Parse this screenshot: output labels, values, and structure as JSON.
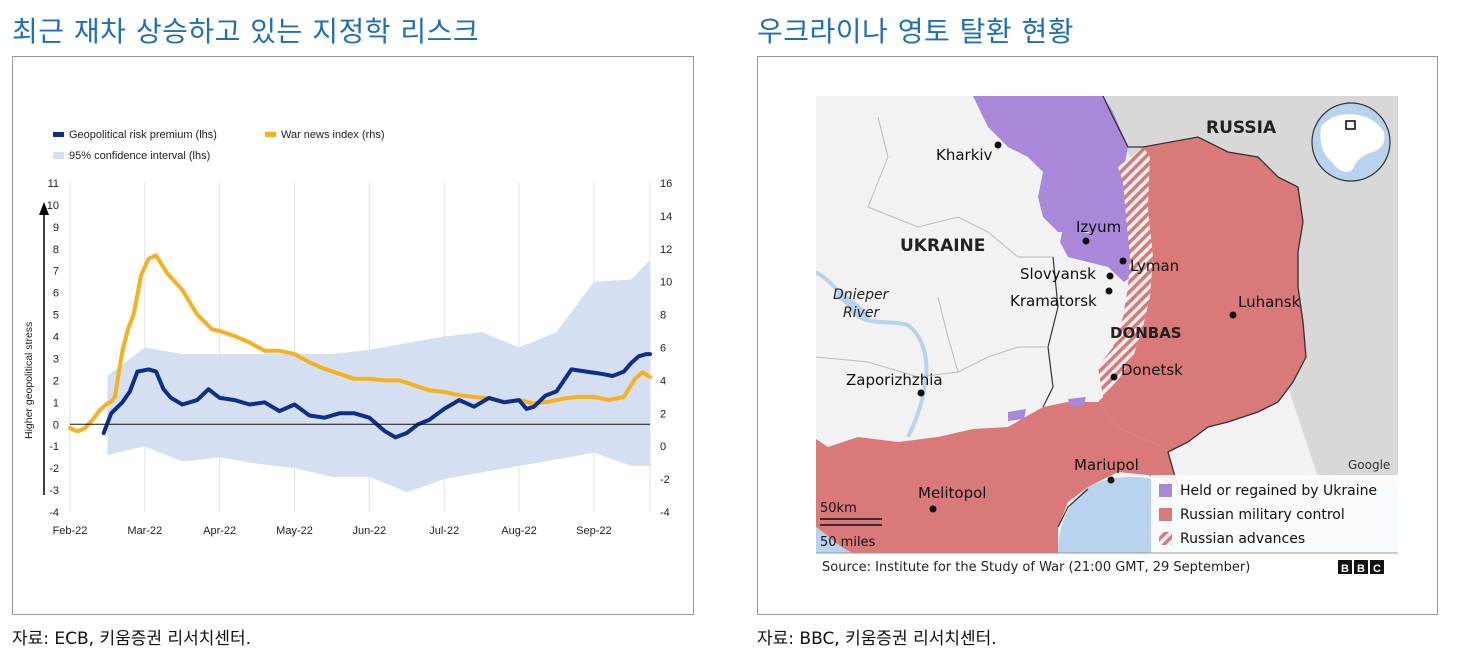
{
  "left_panel": {
    "title": "최근 재차 상승하고 있는 지정학 리스크",
    "source": "자료: ECB, 키움증권 리서치센터."
  },
  "right_panel": {
    "title": "우크라이나 영토 탈환 현황",
    "source": "자료: BBC, 키움증권 리서치센터.",
    "map": {
      "labels": {
        "russia": "RUSSIA",
        "ukraine": "UKRAINE",
        "donbas": "DONBAS",
        "river": [
          "Dnieper",
          "River"
        ]
      },
      "cities": [
        {
          "name": "Kharkiv"
        },
        {
          "name": "Izyum"
        },
        {
          "name": "Lyman"
        },
        {
          "name": "Slovyansk"
        },
        {
          "name": "Kramatorsk"
        },
        {
          "name": "Luhansk"
        },
        {
          "name": "Donetsk"
        },
        {
          "name": "Zaporizhzhia"
        },
        {
          "name": "Mariupol"
        },
        {
          "name": "Melitopol"
        }
      ],
      "legend": [
        {
          "label": "Held or regained by Ukraine",
          "color": "#a987d9"
        },
        {
          "label": "Russian military control",
          "color": "#d9797a"
        },
        {
          "label": "Russian advances",
          "color": "#d9797a"
        }
      ],
      "scale": [
        "50km",
        "50 miles"
      ],
      "attribution": "Google",
      "source": "Source: Institute for the Study of War (21:00 GMT, 29 September)",
      "logo": "BBC",
      "colors": {
        "land": "#f2f2f2",
        "russia_land": "#d8d8d8",
        "sea": "#b9d3ee",
        "control": "#d9797a",
        "ukraine_held": "#a987d9"
      }
    }
  },
  "chart_data": {
    "type": "line",
    "title": "",
    "ylabel": "Higher geopolitical stress",
    "x_ticks": [
      "Feb-22",
      "Mar-22",
      "Apr-22",
      "May-22",
      "Jun-22",
      "Jul-22",
      "Aug-22",
      "Sep-22"
    ],
    "x_range": [
      0,
      7.75
    ],
    "ylim": [
      -4,
      11
    ],
    "y2lim": [
      -4,
      16
    ],
    "y_ticks": [
      -4,
      -3,
      -2,
      -1,
      0,
      1,
      2,
      3,
      4,
      5,
      6,
      7,
      8,
      9,
      10,
      11
    ],
    "y2_ticks": [
      -4,
      -2,
      0,
      2,
      4,
      6,
      8,
      10,
      12,
      14,
      16
    ],
    "grid": "vertical",
    "legend_position": "top-left",
    "legend": [
      {
        "name": "Geopolitical risk premium (lhs)",
        "color": "#0e2e8c"
      },
      {
        "name": "War news index (rhs)",
        "color": "#f7b11e"
      },
      {
        "name": "95% confidence interval (lhs)",
        "color": "#d4dff2"
      }
    ],
    "series": [
      {
        "name": "Geopolitical risk premium (lhs)",
        "axis": "left",
        "x": [
          0.45,
          0.55,
          0.7,
          0.8,
          0.9,
          1.05,
          1.15,
          1.25,
          1.35,
          1.5,
          1.7,
          1.85,
          2.0,
          2.2,
          2.4,
          2.6,
          2.8,
          3.0,
          3.2,
          3.4,
          3.6,
          3.8,
          4.0,
          4.2,
          4.35,
          4.5,
          4.65,
          4.8,
          5.0,
          5.2,
          5.4,
          5.6,
          5.8,
          6.0,
          6.1,
          6.2,
          6.35,
          6.5,
          6.7,
          6.9,
          7.1,
          7.25,
          7.4,
          7.5,
          7.6,
          7.7,
          7.75
        ],
        "y": [
          -0.4,
          0.5,
          1.0,
          1.5,
          2.4,
          2.5,
          2.4,
          1.6,
          1.2,
          0.9,
          1.1,
          1.6,
          1.2,
          1.1,
          0.9,
          1.0,
          0.6,
          0.9,
          0.4,
          0.3,
          0.5,
          0.5,
          0.3,
          -0.3,
          -0.6,
          -0.4,
          0.0,
          0.2,
          0.7,
          1.1,
          0.8,
          1.2,
          1.0,
          1.1,
          0.7,
          0.8,
          1.3,
          1.5,
          2.5,
          2.4,
          2.3,
          2.2,
          2.4,
          2.8,
          3.1,
          3.2,
          3.2
        ]
      },
      {
        "name": "War news index (rhs)",
        "axis": "right",
        "x": [
          0.0,
          0.1,
          0.2,
          0.3,
          0.4,
          0.5,
          0.55,
          0.6,
          0.7,
          0.78,
          0.85,
          0.95,
          1.05,
          1.15,
          1.3,
          1.5,
          1.7,
          1.9,
          2.0,
          2.2,
          2.4,
          2.6,
          2.8,
          3.0,
          3.2,
          3.4,
          3.6,
          3.8,
          4.0,
          4.2,
          4.4,
          4.6,
          4.8,
          5.0,
          5.2,
          5.4,
          5.6,
          5.8,
          6.0,
          6.2,
          6.4,
          6.6,
          6.8,
          7.0,
          7.2,
          7.4,
          7.55,
          7.65,
          7.75
        ],
        "y": [
          1.1,
          0.9,
          1.1,
          1.6,
          2.2,
          2.6,
          2.7,
          3.0,
          5.8,
          7.2,
          8.0,
          10.4,
          11.4,
          11.6,
          10.5,
          9.5,
          8.0,
          7.1,
          7.0,
          6.7,
          6.3,
          5.8,
          5.8,
          5.6,
          5.1,
          4.7,
          4.4,
          4.1,
          4.1,
          4.0,
          4.0,
          3.7,
          3.4,
          3.3,
          3.1,
          3.0,
          2.9,
          2.7,
          2.8,
          2.6,
          2.7,
          2.9,
          3.0,
          3.0,
          2.8,
          3.0,
          4.1,
          4.5,
          4.2
        ]
      }
    ],
    "confidence_band": {
      "name": "95% confidence interval (lhs)",
      "axis": "left",
      "x": [
        0.5,
        1.0,
        1.5,
        2.0,
        2.5,
        3.0,
        3.5,
        4.0,
        4.5,
        5.0,
        5.5,
        6.0,
        6.5,
        7.0,
        7.5,
        7.75
      ],
      "upper": [
        2.2,
        3.5,
        3.2,
        3.2,
        3.2,
        3.2,
        3.2,
        3.4,
        3.7,
        4.0,
        4.2,
        3.5,
        4.2,
        6.5,
        6.6,
        7.5
      ],
      "lower": [
        -1.4,
        -1.0,
        -1.7,
        -1.5,
        -1.8,
        -2.0,
        -2.4,
        -2.4,
        -3.1,
        -2.5,
        -2.2,
        -1.9,
        -1.6,
        -1.3,
        -1.9,
        -1.9
      ]
    }
  }
}
